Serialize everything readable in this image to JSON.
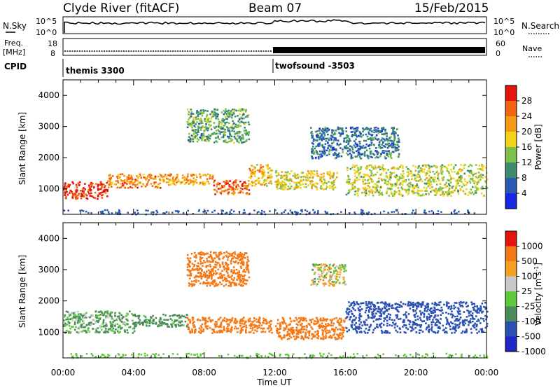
{
  "header": {
    "station": "Clyde River (fitACF)",
    "beam": "Beam 07",
    "date": "15/Feb/2015"
  },
  "noise_panel": {
    "left_label": "N.Sky",
    "right_label": "N.Search",
    "tick_top": "10^5",
    "tick_bottom": "10^0"
  },
  "freq_panel": {
    "left_label_1": "Freq.",
    "left_label_2": "[MHz]",
    "right_label": "Nave",
    "left_ticks": [
      "18",
      "8"
    ],
    "right_ticks": [
      "60",
      "0"
    ]
  },
  "cpid": {
    "label": "CPID",
    "segments": [
      {
        "name": "themis 3300",
        "start_hour": 0
      },
      {
        "name": "twofsound -3503",
        "start_hour": 12
      }
    ]
  },
  "x_axis": {
    "label": "Time UT",
    "ticks": [
      "00:00",
      "04:00",
      "08:00",
      "12:00",
      "16:00",
      "20:00",
      "00:00"
    ],
    "range_hours": [
      0,
      24
    ]
  },
  "y_axis": {
    "label": "Slant Range [km]",
    "ticks": [
      "1000",
      "2000",
      "3000",
      "4000"
    ],
    "range_km": [
      180,
      4500
    ]
  },
  "power_colorbar": {
    "label": "Power [dB]",
    "ticks": [
      "4",
      "8",
      "12",
      "16",
      "20",
      "24",
      "28"
    ],
    "colors": [
      "#1428e6",
      "#2a5ab5",
      "#3c8c6e",
      "#7cc24a",
      "#f2d21a",
      "#f59a14",
      "#f2640f",
      "#e6140f"
    ]
  },
  "velocity_colorbar": {
    "label": "Velocity [m s",
    "label_sup": "-1",
    "label_end": "]",
    "ticks": [
      "1000",
      "500",
      "100",
      "25",
      "-25",
      "-100",
      "-500",
      "-1000"
    ],
    "colors": [
      "#1e28c8",
      "#2a50b4",
      "#4a8c5a",
      "#5fc83c",
      "#c8c8c8",
      "#f5a01e",
      "#f57814",
      "#e6140f"
    ]
  },
  "chart_data": [
    {
      "type": "heatmap",
      "name": "power",
      "x_unit": "hours UT",
      "y_unit": "km",
      "value_unit": "dB",
      "regions": [
        {
          "x0": 0.0,
          "x1": 2.5,
          "y0": 700,
          "y1": 1250,
          "value": 28
        },
        {
          "x0": 2.5,
          "x1": 5.5,
          "y0": 1050,
          "y1": 1500,
          "value": 24
        },
        {
          "x0": 5.5,
          "x1": 8.5,
          "y0": 1150,
          "y1": 1500,
          "value": 22
        },
        {
          "x0": 8.5,
          "x1": 10.5,
          "y0": 850,
          "y1": 1300,
          "value": 26
        },
        {
          "x0": 10.5,
          "x1": 11.8,
          "y0": 1100,
          "y1": 1800,
          "value": 20
        },
        {
          "x0": 12.0,
          "x1": 15.5,
          "y0": 1000,
          "y1": 1600,
          "value": 18
        },
        {
          "x0": 16.0,
          "x1": 24.0,
          "y0": 800,
          "y1": 1800,
          "value": 16
        },
        {
          "x0": 7.0,
          "x1": 10.5,
          "y0": 2500,
          "y1": 3600,
          "value": 12
        },
        {
          "x0": 14.0,
          "x1": 19.0,
          "y0": 2000,
          "y1": 3000,
          "value": 8
        }
      ]
    },
    {
      "type": "heatmap",
      "name": "velocity",
      "x_unit": "hours UT",
      "y_unit": "km",
      "value_unit": "m/s",
      "regions": [
        {
          "x0": 0.0,
          "x1": 4.0,
          "y0": 1000,
          "y1": 1700,
          "value": 100
        },
        {
          "x0": 4.0,
          "x1": 7.0,
          "y0": 1200,
          "y1": 1600,
          "value": 200
        },
        {
          "x0": 7.0,
          "x1": 11.8,
          "y0": 1000,
          "y1": 1500,
          "value": -300
        },
        {
          "x0": 12.0,
          "x1": 16.0,
          "y0": 800,
          "y1": 1500,
          "value": -300
        },
        {
          "x0": 16.0,
          "x1": 24.0,
          "y0": 1000,
          "y1": 2000,
          "value": 800
        },
        {
          "x0": 7.0,
          "x1": 10.5,
          "y0": 2500,
          "y1": 3600,
          "value": -300
        },
        {
          "x0": 14.0,
          "x1": 16.0,
          "y0": 2500,
          "y1": 3200,
          "value": 0
        }
      ]
    }
  ]
}
